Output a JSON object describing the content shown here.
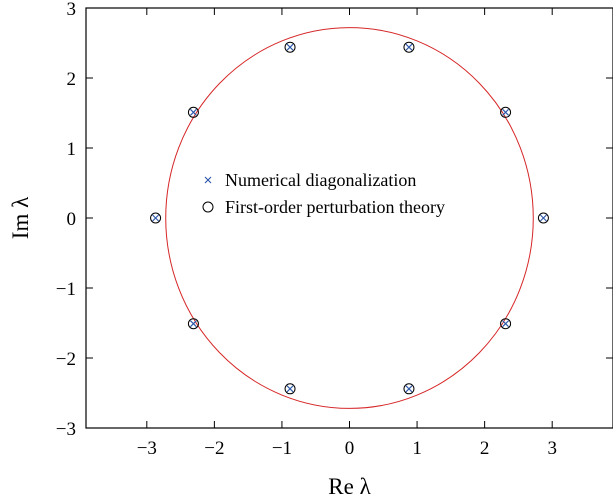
{
  "chart_data": {
    "type": "scatter",
    "xlabel": "Re λ",
    "ylabel": "Im λ",
    "xlim": [
      -3.9,
      3.9
    ],
    "ylim": [
      -3,
      3
    ],
    "xticks": [
      -3,
      -2,
      -1,
      0,
      1,
      2,
      3
    ],
    "yticks": [
      -3,
      -2,
      -1,
      0,
      1,
      2,
      3
    ],
    "xtick_labels": [
      "−3",
      "−2",
      "−1",
      "0",
      "1",
      "2",
      "3"
    ],
    "ytick_labels": [
      "−3",
      "−2",
      "−1",
      "0",
      "1",
      "2",
      "3"
    ],
    "grid": false,
    "legend_position": "center",
    "series": [
      {
        "name": "Numerical diagonalization",
        "marker": "x",
        "color": "#2a56a8",
        "x": [
          -2.87,
          -2.31,
          -0.88,
          0.88,
          2.31,
          2.87,
          2.31,
          0.88,
          -0.88,
          -2.31
        ],
        "y": [
          0.0,
          1.51,
          2.44,
          2.44,
          1.51,
          0.0,
          -1.51,
          -2.44,
          -2.44,
          -1.51
        ]
      },
      {
        "name": "First-order perturbation theory",
        "marker": "o",
        "color": "#000000",
        "x": [
          -2.87,
          -2.31,
          -0.88,
          0.88,
          2.31,
          2.87,
          2.31,
          0.88,
          -0.88,
          -2.31
        ],
        "y": [
          0.0,
          1.51,
          2.44,
          2.44,
          1.51,
          0.0,
          -1.51,
          -2.44,
          -2.44,
          -1.51
        ]
      }
    ],
    "circle": {
      "center": [
        0,
        0
      ],
      "radius": 2.72,
      "color": "#d62728"
    }
  }
}
